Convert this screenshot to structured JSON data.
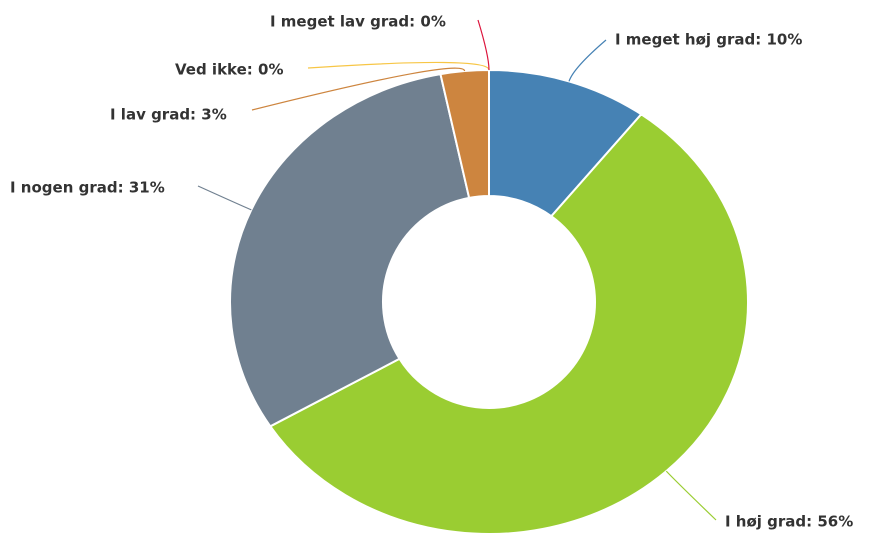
{
  "chart_data": {
    "type": "donut",
    "labels": [
      "I meget høj grad: 10%",
      "I høj grad: 56%",
      "I nogen grad: 31%",
      "I lav grad: 3%",
      "Ved ikke: 0%",
      "I meget lav grad: 0%"
    ],
    "values": [
      10,
      56,
      31,
      3,
      0,
      0
    ],
    "colors": [
      "#4682b4",
      "#9acd32",
      "#708090",
      "#cd853f",
      "#f7c646",
      "#dc143c"
    ]
  }
}
